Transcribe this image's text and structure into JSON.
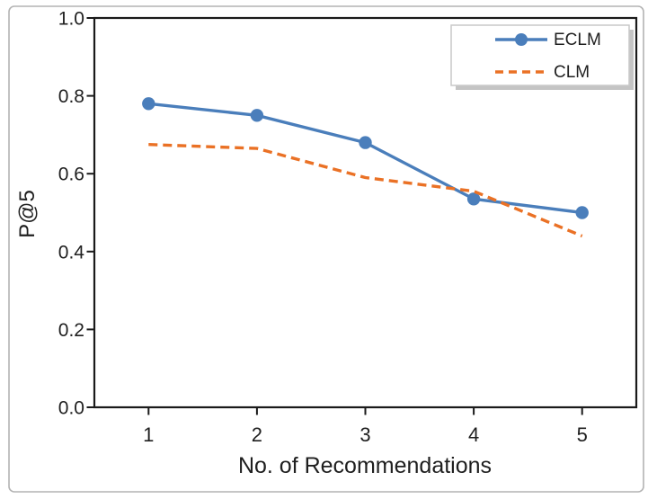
{
  "figure": {
    "background": "#ffffff",
    "border_color": "#b3b3b3",
    "text_color": "#1f1f1f",
    "axis_color": "#1a1a1a"
  },
  "chart_data": {
    "type": "line",
    "title": "",
    "xlabel": "No. of Recommendations",
    "ylabel": "P@5",
    "categories": [
      "1",
      "2",
      "3",
      "4",
      "5"
    ],
    "y_ticks": [
      "1.0",
      "0.8",
      "0.6",
      "0.4",
      "0.2",
      "0.0"
    ],
    "y_tick_values": [
      1.0,
      0.8,
      0.6,
      0.4,
      0.2,
      0.0
    ],
    "ylim": [
      0.0,
      1.0
    ],
    "grid": false,
    "legend_position": "top-right-inside",
    "series": [
      {
        "name": "ECLM",
        "color": "#4a7ebb",
        "line_style": "solid",
        "marker": "circle",
        "values": [
          0.78,
          0.75,
          0.68,
          0.535,
          0.5
        ]
      },
      {
        "name": "CLM",
        "color": "#ea7125",
        "line_style": "dashed",
        "marker": "none",
        "values": [
          0.675,
          0.665,
          0.59,
          0.555,
          0.44
        ]
      }
    ]
  }
}
